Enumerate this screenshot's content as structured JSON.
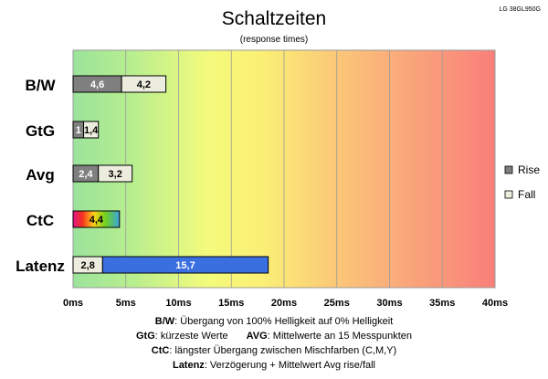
{
  "chart_data": {
    "type": "bar",
    "orientation": "horizontal",
    "stacked": true,
    "title": "Schaltzeiten",
    "subtitle": "(response times)",
    "model": "LG 38GL950G",
    "categories": [
      "B/W",
      "GtG",
      "Avg",
      "CtC",
      "Latenz"
    ],
    "x_ticks": [
      "0ms",
      "5ms",
      "10ms",
      "15ms",
      "20ms",
      "25ms",
      "30ms",
      "35ms",
      "40ms"
    ],
    "xlim": [
      0,
      40
    ],
    "x_unit": "ms",
    "grid": true,
    "legend_position": "right",
    "background": "gradient green-yellow-orange-red",
    "series": [
      {
        "name": "Rise",
        "color": "#7f7f7f",
        "values": [
          4.6,
          1,
          2.4,
          null,
          null
        ],
        "labels": [
          "4,6",
          "1",
          "2,4",
          "",
          ""
        ]
      },
      {
        "name": "Fall",
        "color": "#ededdf",
        "values": [
          4.2,
          1.4,
          3.2,
          null,
          2.8
        ],
        "labels": [
          "4,2",
          "1,4",
          "3,2",
          "",
          "2,8"
        ]
      },
      {
        "name": "",
        "color": "rainbow",
        "values": [
          null,
          null,
          null,
          4.4,
          null
        ],
        "labels": [
          "",
          "",
          "",
          "4,4",
          ""
        ]
      },
      {
        "name": "",
        "color": "#3a6fe0",
        "values": [
          null,
          null,
          null,
          null,
          15.7
        ],
        "labels": [
          "",
          "",
          "",
          "",
          "15,7"
        ]
      }
    ]
  },
  "footer": {
    "line1": {
      "key": "B/W",
      "text": ":  Übergang von 100% Helligkeit auf 0% Helligkeit"
    },
    "line2": {
      "key": "GtG",
      "text": ": kürzeste  Werte",
      "key2": "AVG",
      "text2": ": Mittelwerte  an 15 Messpunkten"
    },
    "line3": {
      "key": "CtC",
      "text": ": längster Übergang  zwischen Mischfarben  (C,M,Y)"
    },
    "line4": {
      "key": "Latenz",
      "text": ": Verzögerung  + Mittelwert Avg rise/fall"
    }
  }
}
